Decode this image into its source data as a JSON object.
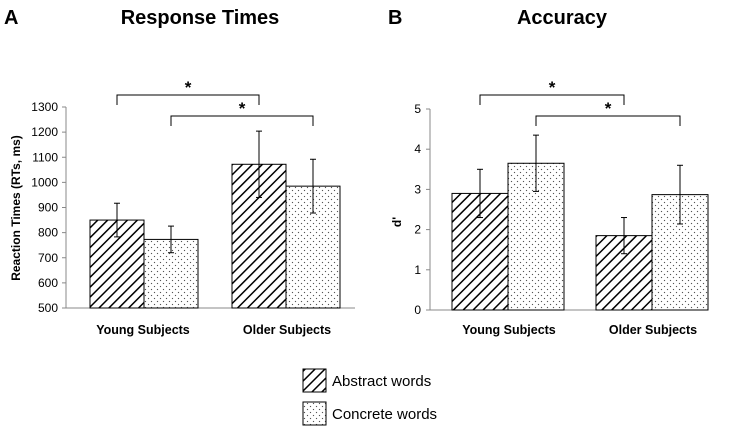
{
  "chart_data": [
    {
      "type": "bar",
      "panel": "A",
      "title": "Response Times",
      "xlabel": "",
      "ylabel": "Reaction Times (RTs, ms)",
      "ylim": [
        500,
        1300
      ],
      "yticks": [
        500,
        600,
        700,
        800,
        900,
        1000,
        1100,
        1200,
        1300
      ],
      "categories": [
        "Young Subjects",
        "Older Subjects"
      ],
      "series": [
        {
          "name": "Abstract words",
          "values": [
            850,
            1072
          ],
          "error": [
            67,
            132
          ]
        },
        {
          "name": "Concrete words",
          "values": [
            773,
            985
          ],
          "error": [
            53,
            107
          ]
        }
      ],
      "significance": [
        {
          "from": "Young Subjects / Abstract words",
          "to": "Older Subjects / Abstract words",
          "label": "*"
        },
        {
          "from": "Young Subjects / Concrete words",
          "to": "Older Subjects / Concrete words",
          "label": "*"
        }
      ]
    },
    {
      "type": "bar",
      "panel": "B",
      "title": "Accuracy",
      "xlabel": "",
      "ylabel": "d'",
      "ylim": [
        0,
        5
      ],
      "yticks": [
        0,
        1,
        2,
        3,
        4,
        5
      ],
      "categories": [
        "Young Subjects",
        "Older Subjects"
      ],
      "series": [
        {
          "name": "Abstract words",
          "values": [
            2.9,
            1.85
          ],
          "error": [
            0.6,
            0.45
          ]
        },
        {
          "name": "Concrete words",
          "values": [
            3.65,
            2.87
          ],
          "error": [
            0.7,
            0.73
          ]
        }
      ],
      "significance": [
        {
          "from": "Young Subjects / Abstract words",
          "to": "Older Subjects / Abstract words",
          "label": "*"
        },
        {
          "from": "Young Subjects / Concrete words",
          "to": "Older Subjects / Concrete words",
          "label": "*"
        }
      ]
    }
  ],
  "legend": [
    {
      "label": "Abstract words",
      "pattern": "diagonal-hatch"
    },
    {
      "label": "Concrete words",
      "pattern": "dots"
    }
  ],
  "colors": {
    "bar_fill": "#ffffff",
    "stroke": "#000000",
    "axis": "#888888"
  }
}
